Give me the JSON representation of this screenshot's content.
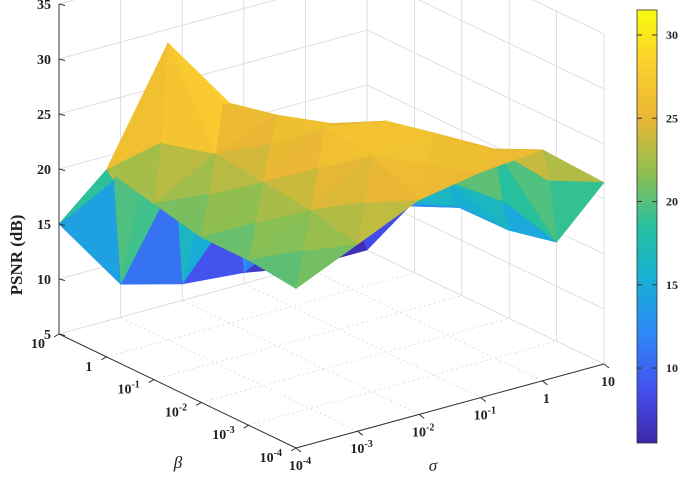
{
  "chart_data": {
    "type": "surface",
    "zlabel": "PSNR (dB)",
    "xlabel": "σ",
    "ylabel": "β",
    "zlim": [
      5,
      35
    ],
    "z_ticks": [
      "5",
      "10",
      "15",
      "20",
      "25",
      "30",
      "35"
    ],
    "sigma_ticks": [
      "10-4",
      "10-3",
      "10-2",
      "10-1",
      "1",
      "10"
    ],
    "beta_ticks": [
      "10-4",
      "10-3",
      "10-2",
      "10-1",
      "1",
      "10"
    ],
    "sigma": [
      "10-4",
      "10-3",
      "10-2",
      "10-1",
      "1",
      "10"
    ],
    "beta": [
      "10-4",
      "10-3",
      "10-2",
      "10-1",
      "1",
      "10"
    ],
    "psnr": [
      [
        19.5,
        22.0,
        24.5,
        25.5,
        26.0,
        21.5
      ],
      [
        20.0,
        23.0,
        26.5,
        27.0,
        24.0,
        14.0
      ],
      [
        20.0,
        23.5,
        27.0,
        26.0,
        19.0,
        13.0
      ],
      [
        21.0,
        24.0,
        26.0,
        23.0,
        15.0,
        13.0
      ],
      [
        22.0,
        32.0,
        25.0,
        18.0,
        12.0,
        11.5
      ],
      [
        15.0,
        8.0,
        6.5,
        6.0,
        5.0,
        5.0
      ]
    ],
    "colormap": "parula",
    "colorbar": {
      "ticks": [
        "10",
        "15",
        "20",
        "25",
        "30"
      ],
      "range": [
        5.5,
        31.5
      ]
    },
    "grid": true
  }
}
